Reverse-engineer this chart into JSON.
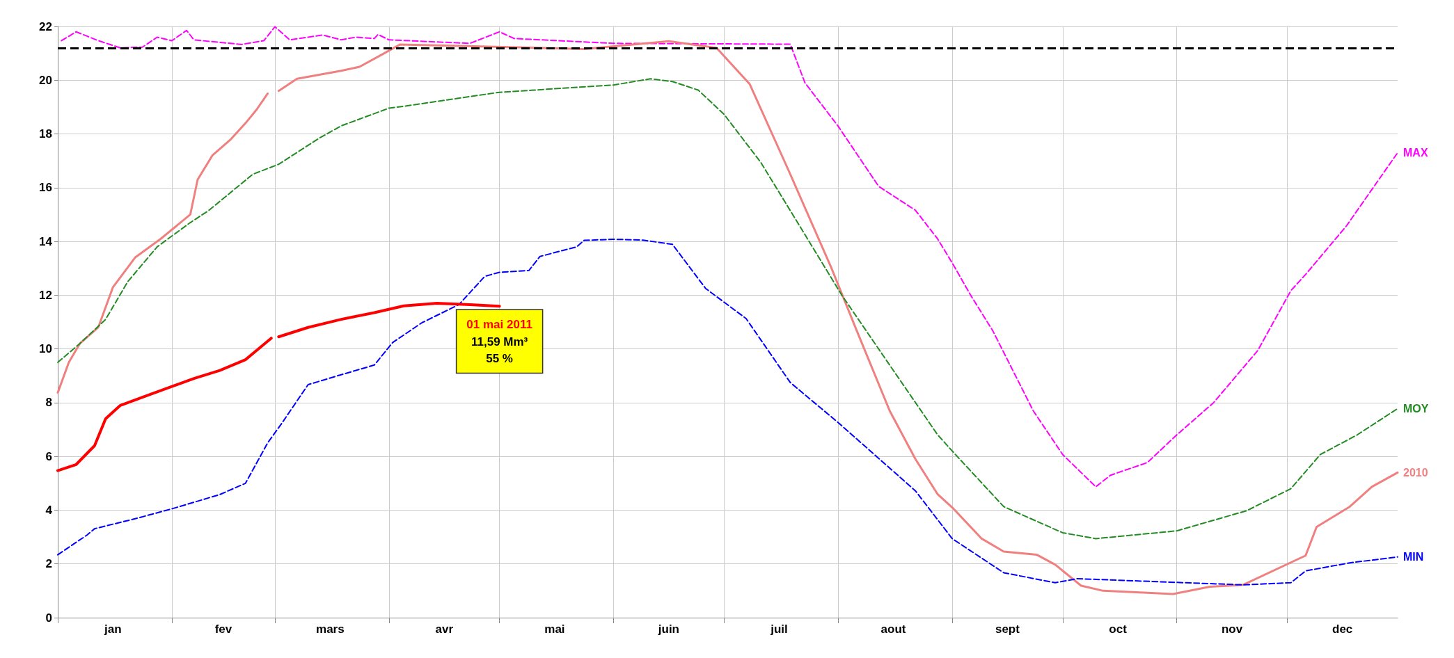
{
  "chart_data": {
    "type": "line",
    "marker": "none",
    "grid": true,
    "legend": false,
    "xlim": [
      "--01-01",
      "--12-31"
    ],
    "xticks": [
      {
        "value": "--01-01",
        "label": null
      },
      {
        "value": "--02-01",
        "label": null
      },
      {
        "value": "--03-01",
        "label": null
      },
      {
        "value": "--04-01",
        "label": null
      },
      {
        "value": "--05-01",
        "label": null
      },
      {
        "value": "--06-01",
        "label": null
      },
      {
        "value": "--07-01",
        "label": null
      },
      {
        "value": "--08-01",
        "label": null
      },
      {
        "value": "--09-01",
        "label": null
      },
      {
        "value": "--10-01",
        "label": null
      },
      {
        "value": "--11-01",
        "label": null
      },
      {
        "value": "--12-01",
        "label": null
      },
      {
        "value": "--01-16",
        "label": "jan"
      },
      {
        "value": "--02-15",
        "label": "fev"
      },
      {
        "value": "--03-16",
        "label": "mars"
      },
      {
        "value": "--04-16",
        "label": "avr"
      },
      {
        "value": "--05-16",
        "label": "mai"
      },
      {
        "value": "--06-16",
        "label": "juin"
      },
      {
        "value": "--07-16",
        "label": "juil"
      },
      {
        "value": "--08-16",
        "label": "aout"
      },
      {
        "value": "--09-16",
        "label": "sept"
      },
      {
        "value": "--10-16",
        "label": "oct"
      },
      {
        "value": "--11-16",
        "label": "nov"
      },
      {
        "value": "--12-16",
        "label": "dec"
      }
    ],
    "ylim": [
      0,
      22
    ],
    "yticks": [
      0,
      2,
      4,
      6,
      8,
      10,
      12,
      14,
      16,
      18,
      20,
      22
    ],
    "ref_lines": [
      {
        "axis": "y",
        "value": 21.2,
        "color": "#000000",
        "line_style": "dashed"
      }
    ],
    "annotations": [
      {
        "text": "01 mai 2011\n11,59 Mm³\n55 %",
        "x": "--05-01",
        "y": 11.59
      }
    ],
    "series": [
      {
        "name": "MAX",
        "color": "#ff00ff",
        "line_style": "dashed",
        "x": [
          "--01-02",
          "--01-06",
          "--01-12",
          "--01-18",
          "--01-24",
          "--01-28",
          "--02-01",
          "--02-05",
          "--02-07",
          "--02-20",
          "--02-26",
          "--03-01",
          "--03-05",
          "--03-14",
          "--03-19",
          "--03-23",
          "--03-28",
          "--03-29",
          "--04-01",
          "--04-23",
          "--05-01",
          "--05-05",
          "--06-01",
          "--07-19",
          "--07-23",
          "--08-01",
          "--08-12",
          "--08-22",
          "--08-28",
          "--09-01",
          "--09-06",
          "--09-12",
          "--09-23",
          "--10-01",
          "--10-10",
          "--10-14",
          "--10-24",
          "--11-01",
          "--11-11",
          "--11-23",
          "--12-02",
          "--12-06",
          "--12-17",
          "--12-31"
        ],
        "values": [
          21.47,
          21.8,
          21.47,
          21.2,
          21.23,
          21.6,
          21.47,
          21.85,
          21.5,
          21.33,
          21.47,
          21.99,
          21.5,
          21.68,
          21.5,
          21.6,
          21.55,
          21.7,
          21.5,
          21.37,
          21.8,
          21.55,
          21.37,
          21.34,
          19.9,
          18.29,
          16.05,
          15.16,
          14.1,
          13.2,
          12.0,
          10.68,
          7.7,
          6.07,
          4.87,
          5.3,
          5.77,
          6.8,
          8.0,
          9.94,
          12.17,
          12.77,
          14.56,
          17.3
        ]
      },
      {
        "name": "2010",
        "color": "#f08080",
        "line_style": "solid",
        "x": [
          "--01-01",
          "--01-04",
          "--01-07",
          "--01-12",
          "--01-16",
          "--01-22",
          "--01-29",
          "--02-06",
          "--02-08",
          "--02-12",
          "--02-17",
          "--02-21",
          "--02-24",
          "--02-27",
          "--03-01",
          "--03-02",
          "--03-07",
          "--03-19",
          "--03-24",
          "--03-30",
          "--04-04",
          "--05-24",
          "--06-16",
          "--06-29",
          "--07-08",
          "--07-19",
          "--07-30",
          "--08-06",
          "--08-15",
          "--08-22",
          "--08-28",
          "--09-01",
          "--09-09",
          "--09-15",
          "--09-24",
          "--09-29",
          "--10-06",
          "--10-12",
          "--10-31",
          "--11-10",
          "--11-19",
          "--12-06",
          "--12-09",
          "--12-18",
          "--12-24",
          "--12-31"
        ],
        "values": [
          8.37,
          9.5,
          10.2,
          10.8,
          12.3,
          13.4,
          14.1,
          15.0,
          16.3,
          17.2,
          17.8,
          18.4,
          18.9,
          19.5,
          null,
          19.6,
          20.05,
          20.35,
          20.5,
          20.95,
          21.33,
          21.16,
          21.45,
          21.2,
          19.85,
          16.5,
          13.07,
          10.7,
          7.7,
          5.9,
          4.6,
          4.1,
          2.94,
          2.46,
          2.34,
          1.97,
          1.19,
          1.0,
          0.88,
          1.15,
          1.22,
          2.31,
          3.38,
          4.13,
          4.87,
          5.4
        ]
      },
      {
        "name": "MOY",
        "color": "#228b22",
        "line_style": "dashed",
        "x": [
          "--01-01",
          "--01-07",
          "--01-14",
          "--01-20",
          "--01-28",
          "--02-06",
          "--02-11",
          "--02-23",
          "--03-02",
          "--03-13",
          "--03-19",
          "--04-01",
          "--04-05",
          "--05-01",
          "--06-01",
          "--06-11",
          "--06-17",
          "--06-24",
          "--07-01",
          "--07-11",
          "--07-21",
          "--08-02",
          "--08-16",
          "--08-28",
          "--09-01",
          "--09-15",
          "--10-01",
          "--10-10",
          "--11-01",
          "--11-20",
          "--12-02",
          "--12-10",
          "--12-20",
          "--12-31"
        ],
        "values": [
          9.5,
          10.2,
          11.1,
          12.5,
          13.8,
          14.7,
          15.15,
          16.5,
          16.87,
          17.84,
          18.3,
          18.96,
          19.03,
          19.55,
          19.82,
          20.05,
          19.95,
          19.63,
          18.73,
          16.94,
          14.7,
          12.0,
          9.2,
          6.81,
          6.2,
          4.13,
          3.16,
          2.94,
          3.23,
          3.98,
          4.8,
          6.07,
          6.8,
          7.78
        ]
      },
      {
        "name": "MIN",
        "color": "#0000ff",
        "line_style": "dashed",
        "x": [
          "--01-01",
          "--01-09",
          "--01-11",
          "--01-22",
          "--02-01",
          "--02-14",
          "--02-21",
          "--02-27",
          "--03-03",
          "--03-10",
          "--03-19",
          "--03-28",
          "--04-02",
          "--04-10",
          "--04-20",
          "--04-27",
          "--05-01",
          "--05-09",
          "--05-12",
          "--05-22",
          "--05-24",
          "--06-01",
          "--06-09",
          "--06-17",
          "--06-26",
          "--07-07",
          "--07-19",
          "--08-01",
          "--08-22",
          "--09-01",
          "--09-15",
          "--09-29",
          "--10-05",
          "--11-19",
          "--12-02",
          "--12-06",
          "--12-18",
          "--12-31"
        ],
        "values": [
          2.34,
          3.08,
          3.31,
          3.68,
          4.05,
          4.58,
          5.0,
          6.5,
          7.26,
          8.67,
          9.04,
          9.4,
          10.24,
          10.98,
          11.65,
          12.7,
          12.85,
          12.92,
          13.44,
          13.8,
          14.04,
          14.08,
          14.05,
          13.89,
          12.25,
          11.13,
          8.75,
          7.26,
          4.72,
          2.94,
          1.67,
          1.3,
          1.45,
          1.22,
          1.3,
          1.74,
          2.04,
          2.26
        ]
      },
      {
        "color": "#ff0000",
        "line_style": "solid",
        "x": [
          "--01-01",
          "--01-06",
          "--01-11",
          "--01-14",
          "--01-18",
          "--01-24",
          "--02-01",
          "--02-07",
          "--02-14",
          "--02-21",
          "--02-28",
          "--03-01",
          "--03-02",
          "--03-10",
          "--03-19",
          "--03-28",
          "--04-05",
          "--04-14",
          "--04-23",
          "--05-01"
        ],
        "values": [
          5.47,
          5.7,
          6.4,
          7.4,
          7.9,
          8.2,
          8.6,
          8.9,
          9.2,
          9.6,
          10.4,
          null,
          10.45,
          10.8,
          11.1,
          11.35,
          11.6,
          11.7,
          11.65,
          11.59
        ]
      }
    ]
  }
}
